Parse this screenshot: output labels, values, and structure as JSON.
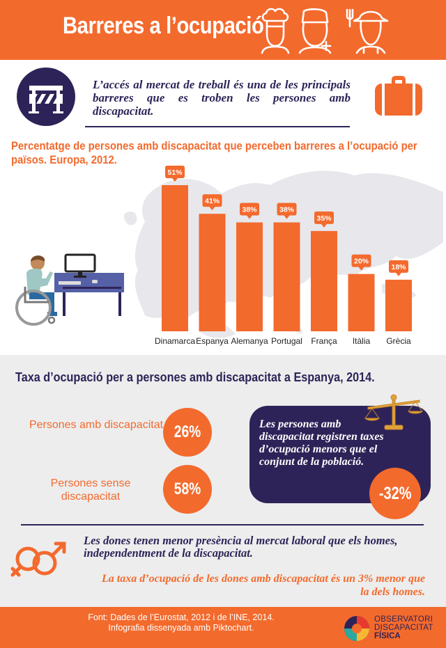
{
  "header": {
    "title": "Barreres a l’ocupació",
    "icons": [
      "chef-icon",
      "nurse-icon",
      "farmer-icon"
    ]
  },
  "intro": {
    "text": "L’accés al mercat de treball és una de les principals barreres que es troben les persones amb discapacitat.",
    "icons": [
      "roadblock-icon",
      "briefcase-icon"
    ]
  },
  "chart_title": "Percentatge de persones amb discapacitat que perceben barreres a l’ocupació per països. Europa, 2012.",
  "chart_data": {
    "type": "bar",
    "title": "Percentatge de persones amb discapacitat que perceben barreres a l’ocupació per països. Europa, 2012.",
    "categories": [
      "Dinamarca",
      "Espanya",
      "Alemanya",
      "Portugal",
      "França",
      "Itàlia",
      "Grècia"
    ],
    "values": [
      51,
      41,
      38,
      38,
      35,
      20,
      18
    ],
    "data_labels": [
      "51%",
      "41%",
      "38%",
      "38%",
      "35%",
      "20%",
      "18%"
    ],
    "ylim": [
      0,
      51
    ],
    "grid": false,
    "bar_color": "#f36a2d"
  },
  "employment": {
    "title": "Taxa d’ocupació per a persones amb discapacitat a Espanya, 2014.",
    "with_label": "Persones amb discapacitat",
    "with_value": "26%",
    "without_label": "Persones sense discapacitat",
    "without_value": "58%",
    "box_text": "Les persones amb discapacitat registren taxes d’ocupació menors que el conjunt de la població.",
    "difference": "-32%"
  },
  "women": {
    "text": "Les dones tenen menor presència al mercat laboral que els homes, independentment de la discapacitat.",
    "note": "La taxa d’ocupació de les dones amb discapacitat és un 3% menor que la dels homes."
  },
  "footer": {
    "source": "Font: Dades de l’Eurostat, 2012 i de l’INE, 2014.",
    "credit": "Infografia dissenyada amb Piktochart.",
    "logo_line1": "OBSERVATORI",
    "logo_line2": "DISCAPACITAT",
    "logo_line3": "FÍSICA"
  },
  "colors": {
    "orange": "#f36a2d",
    "navy": "#2e2358",
    "gray": "#ededed"
  }
}
